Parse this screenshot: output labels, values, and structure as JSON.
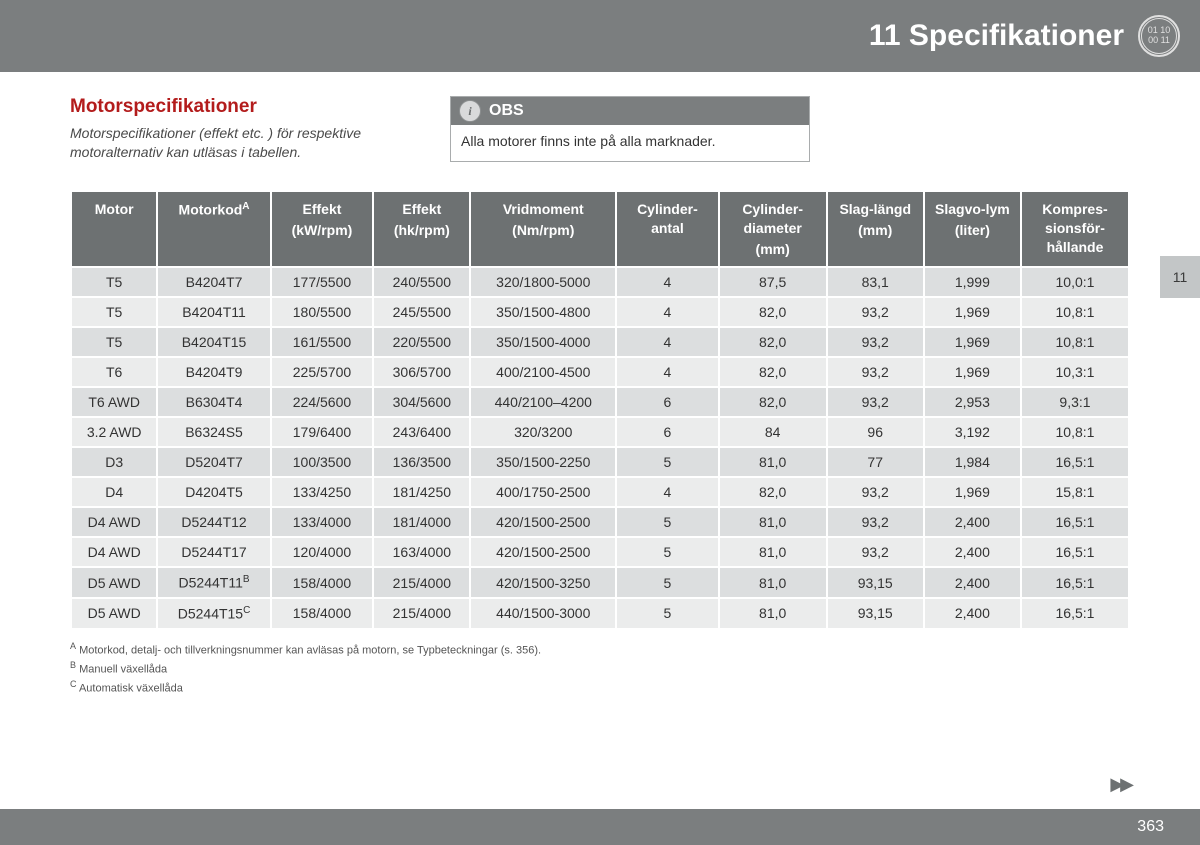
{
  "header": {
    "chapter_number": "11",
    "chapter_title": "Specifikationer",
    "badge_text": "01 10\n00 11"
  },
  "side_tab": "11",
  "section": {
    "heading": "Motorspecifikationer",
    "description": "Motorspecifikationer (effekt etc. ) för respektive motoralternativ kan utläsas i tabellen."
  },
  "obs": {
    "label": "OBS",
    "icon_letter": "i",
    "body": "Alla motorer finns inte på alla marknader."
  },
  "table": {
    "columns": [
      {
        "line1": "Motor",
        "line2": ""
      },
      {
        "line1": "Motorkod",
        "sup": "A",
        "line2": ""
      },
      {
        "line1": "Effekt",
        "line2": "(kW/rpm)"
      },
      {
        "line1": "Effekt",
        "line2": "(hk/rpm)"
      },
      {
        "line1": "Vridmoment",
        "line2": "(Nm/rpm)"
      },
      {
        "line1": "Cylinder-antal",
        "line2": ""
      },
      {
        "line1": "Cylinder-diameter",
        "line2": "(mm)"
      },
      {
        "line1": "Slag-längd",
        "line2": "(mm)"
      },
      {
        "line1": "Slagvo-lym",
        "line2": "(liter)"
      },
      {
        "line1": "Kompres-sionsför-hållande",
        "line2": ""
      }
    ],
    "rows": [
      [
        "T5",
        "B4204T7",
        "",
        "177/5500",
        "240/5500",
        "320/1800-5000",
        "4",
        "87,5",
        "83,1",
        "1,999",
        "10,0:1"
      ],
      [
        "T5",
        "B4204T11",
        "",
        "180/5500",
        "245/5500",
        "350/1500-4800",
        "4",
        "82,0",
        "93,2",
        "1,969",
        "10,8:1"
      ],
      [
        "T5",
        "B4204T15",
        "",
        "161/5500",
        "220/5500",
        "350/1500-4000",
        "4",
        "82,0",
        "93,2",
        "1,969",
        "10,8:1"
      ],
      [
        "T6",
        "B4204T9",
        "",
        "225/5700",
        "306/5700",
        "400/2100-4500",
        "4",
        "82,0",
        "93,2",
        "1,969",
        "10,3:1"
      ],
      [
        "T6 AWD",
        "B6304T4",
        "",
        "224/5600",
        "304/5600",
        "440/2100–4200",
        "6",
        "82,0",
        "93,2",
        "2,953",
        "9,3:1"
      ],
      [
        "3.2 AWD",
        "B6324S5",
        "",
        "179/6400",
        "243/6400",
        "320/3200",
        "6",
        "84",
        "96",
        "3,192",
        "10,8:1"
      ],
      [
        "D3",
        "D5204T7",
        "",
        "100/3500",
        "136/3500",
        "350/1500-2250",
        "5",
        "81,0",
        "77",
        "1,984",
        "16,5:1"
      ],
      [
        "D4",
        "D4204T5",
        "",
        "133/4250",
        "181/4250",
        "400/1750-2500",
        "4",
        "82,0",
        "93,2",
        "1,969",
        "15,8:1"
      ],
      [
        "D4 AWD",
        "D5244T12",
        "",
        "133/4000",
        "181/4000",
        "420/1500-2500",
        "5",
        "81,0",
        "93,2",
        "2,400",
        "16,5:1"
      ],
      [
        "D4 AWD",
        "D5244T17",
        "",
        "120/4000",
        "163/4000",
        "420/1500-2500",
        "5",
        "81,0",
        "93,2",
        "2,400",
        "16,5:1"
      ],
      [
        "D5 AWD",
        "D5244T11",
        "B",
        "158/4000",
        "215/4000",
        "420/1500-3250",
        "5",
        "81,0",
        "93,15",
        "2,400",
        "16,5:1"
      ],
      [
        "D5 AWD",
        "D5244T15",
        "C",
        "158/4000",
        "215/4000",
        "440/1500-3000",
        "5",
        "81,0",
        "93,15",
        "2,400",
        "16,5:1"
      ]
    ]
  },
  "footnotes": [
    {
      "mark": "A",
      "text": "Motorkod, detalj- och tillverkningsnummer kan avläsas på motorn, se Typbeteckningar (s. 356)."
    },
    {
      "mark": "B",
      "text": "Manuell växellåda"
    },
    {
      "mark": "C",
      "text": "Automatisk växellåda"
    }
  ],
  "page_number": "363",
  "colors": {
    "header_bg": "#7b7e7f",
    "heading_red": "#b31c1c",
    "th_bg": "#6d7172",
    "row_odd": "#dcdedf",
    "row_even": "#ebecec",
    "side_tab_bg": "#c3c6c7"
  }
}
